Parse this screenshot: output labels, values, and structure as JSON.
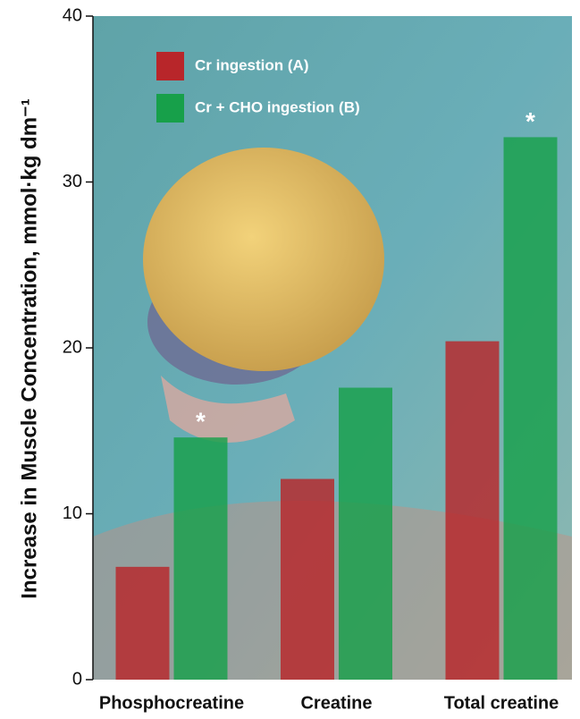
{
  "chart_data": {
    "type": "bar",
    "y_label": "Increase in Muscle Concentration, mmol·kg dm⁻¹",
    "categories": [
      "Phosphocreatine",
      "Creatine",
      "Total creatine"
    ],
    "series": [
      {
        "name": "Cr ingestion (A)",
        "color": "#b8262a",
        "values": [
          6.8,
          12.1,
          20.4
        ]
      },
      {
        "name": "Cr + CHO ingestion (B)",
        "color": "#17a04a",
        "values": [
          14.6,
          17.6,
          32.7
        ]
      }
    ],
    "annotations": [
      {
        "text": "*",
        "category": 0,
        "series": 1
      },
      {
        "text": "*",
        "category": 2,
        "series": 1
      }
    ],
    "ylim": [
      0,
      40
    ],
    "yticks": [
      0,
      10,
      20,
      30,
      40
    ],
    "legend": "upper left"
  }
}
